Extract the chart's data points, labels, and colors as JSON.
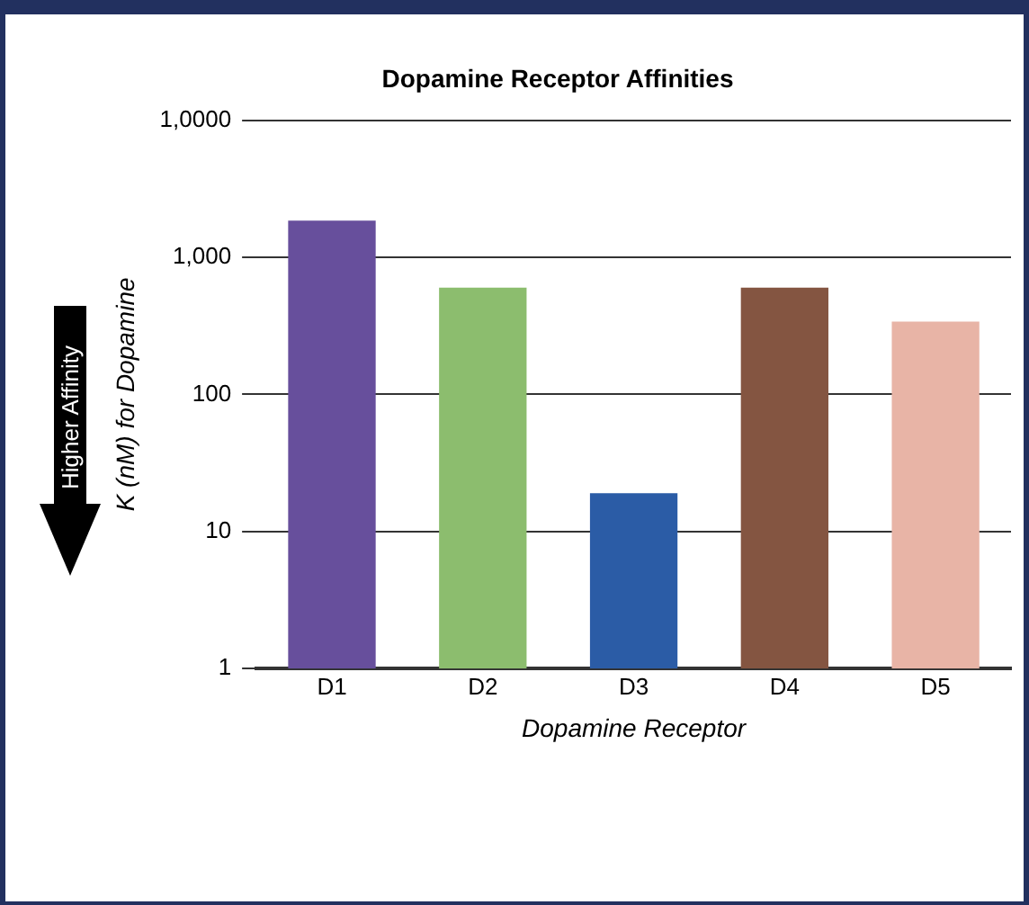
{
  "chart_data": {
    "type": "bar",
    "title": "Dopamine Receptor Affinities",
    "xlabel": "Dopamine Receptor",
    "ylabel": "K (nM) for Dopamine",
    "annotations": [
      "Higher Affinity"
    ],
    "categories": [
      "D1",
      "D2",
      "D3",
      "D4",
      "D5"
    ],
    "values": [
      1850,
      600,
      19,
      600,
      340
    ],
    "colors": [
      "#674f9c",
      "#8cbd6e",
      "#2b5ca6",
      "#845541",
      "#e8b4a6"
    ],
    "log": "y",
    "ylim": [
      1,
      10000
    ],
    "yticks": [
      {
        "value": 1,
        "label": "1"
      },
      {
        "value": 10,
        "label": "10"
      },
      {
        "value": 100,
        "label": "100"
      },
      {
        "value": 1000,
        "label": "1,000"
      },
      {
        "value": 10000,
        "label": "1,0000"
      }
    ],
    "grid": "y",
    "legend": false
  }
}
